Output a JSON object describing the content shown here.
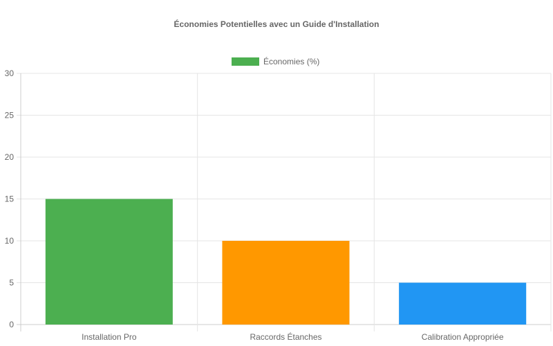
{
  "chart_data": {
    "type": "bar",
    "title": "Économies Potentielles avec un Guide d'Installation",
    "legend": {
      "label": "Économies (%)",
      "placement": "top-center",
      "color": "#4CAF50"
    },
    "categories": [
      "Installation Pro",
      "Raccords Étanches",
      "Calibration Appropriée"
    ],
    "series": [
      {
        "name": "Économies (%)",
        "values": [
          15,
          10,
          5
        ],
        "colors": [
          "#4CAF50",
          "#FF9800",
          "#2196F3"
        ]
      }
    ],
    "ylim": [
      0,
      30
    ],
    "yticks": [
      "0",
      "5",
      "10",
      "15",
      "20",
      "25",
      "30"
    ],
    "grid": true,
    "colors": {
      "grid": "#e5e5e5",
      "axis": "#cccccc",
      "tick_text": "#666666"
    }
  }
}
